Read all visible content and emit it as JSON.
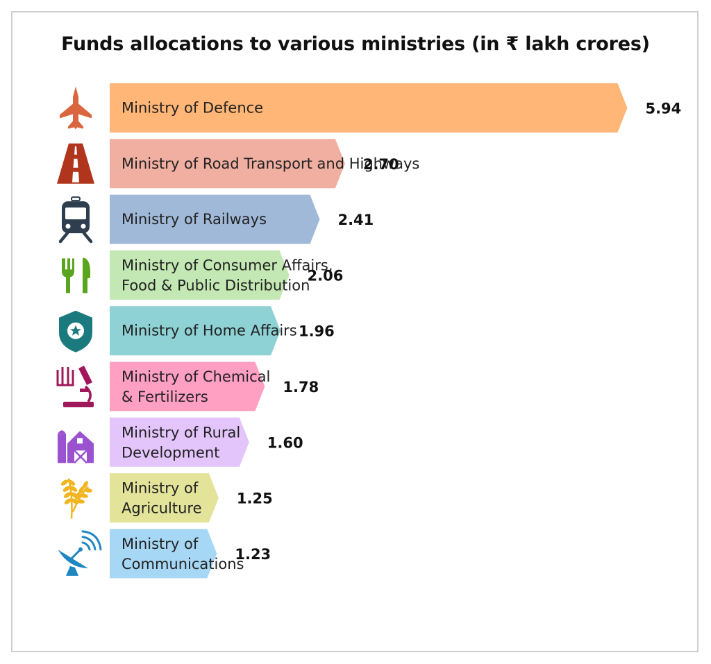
{
  "chart_data": {
    "type": "bar",
    "orientation": "horizontal",
    "title": "Funds allocations to various ministries (in ₹ lakh crores)",
    "xlabel": "",
    "ylabel": "",
    "grid": false,
    "categories": [
      "Ministry of Defence",
      "Ministry of Road Transport and Highways",
      "Ministry of Railways",
      "Ministry of Consumer Affairs, Food & Public Distribution",
      "Ministry of Home Affairs",
      "Ministry of Chemical & Fertilizers",
      "Ministry of Rural Development",
      "Ministry of Agriculture",
      "Ministry of Communications"
    ],
    "category_label_lines": [
      [
        "Ministry of Defence"
      ],
      [
        "Ministry of Road Transport and Highways"
      ],
      [
        "Ministry of Railways"
      ],
      [
        "Ministry of Consumer Affairs,",
        "Food & Public Distribution"
      ],
      [
        "Ministry of Home Affairs"
      ],
      [
        "Ministry of Chemical",
        "& Fertilizers"
      ],
      [
        "Ministry of Rural",
        "Development"
      ],
      [
        "Ministry of",
        "Agriculture"
      ],
      [
        "Ministry of",
        "Communications"
      ]
    ],
    "values": [
      5.94,
      2.7,
      2.41,
      2.06,
      1.96,
      1.78,
      1.6,
      1.25,
      1.23
    ],
    "value_labels": [
      "5.94",
      "2.70",
      "2.41",
      "2.06",
      "1.96",
      "1.78",
      "1.60",
      "1.25",
      "1.23"
    ],
    "bar_colors": [
      "#ffb677",
      "#f0afa0",
      "#a0b9d8",
      "#c3e8b3",
      "#8ed2d6",
      "#ff9fc2",
      "#e3c4fb",
      "#e3e49a",
      "#a6d8f5"
    ],
    "icons": [
      {
        "name": "fighter-jet-icon",
        "color": "#d9663f"
      },
      {
        "name": "road-icon",
        "color": "#b0351c"
      },
      {
        "name": "train-icon",
        "color": "#2f3e4e"
      },
      {
        "name": "fork-knife-icon",
        "color": "#5aa520"
      },
      {
        "name": "police-shield-icon",
        "color": "#1b7a7e"
      },
      {
        "name": "microscope-icon",
        "color": "#a0185a"
      },
      {
        "name": "farm-barn-icon",
        "color": "#9b52d1"
      },
      {
        "name": "wheat-icon",
        "color": "#f0b51f"
      },
      {
        "name": "satellite-dish-icon",
        "color": "#1f86c2"
      }
    ]
  }
}
